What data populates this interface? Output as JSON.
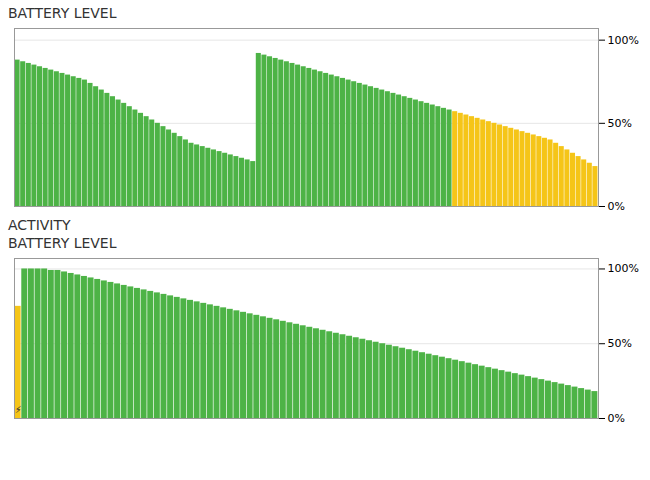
{
  "chart_data": [
    {
      "type": "bar",
      "title": "BATTERY LEVEL",
      "categories": [
        null,
        null,
        null,
        null,
        null,
        null,
        null,
        null,
        null,
        null,
        null,
        null,
        null,
        null,
        null,
        null,
        null,
        null,
        null,
        null,
        null,
        null,
        null,
        null,
        null,
        null,
        null,
        null,
        null,
        null,
        null,
        null,
        null,
        null,
        null,
        null,
        null,
        null,
        null,
        null,
        null,
        null,
        null,
        null,
        null,
        null,
        null,
        null,
        null,
        null,
        null,
        null,
        null,
        null,
        null,
        null,
        null,
        null,
        null,
        null,
        null,
        null,
        null,
        null,
        null,
        null,
        null,
        null,
        null,
        null,
        null,
        null,
        null,
        null,
        null,
        null,
        null,
        null,
        null,
        null,
        null,
        null,
        null,
        null,
        null,
        null,
        null,
        null,
        null,
        null,
        null,
        null,
        null,
        null,
        null,
        null,
        null,
        null,
        null,
        null,
        null,
        null,
        null,
        null
      ],
      "values": [
        88,
        87,
        86,
        85,
        84,
        83,
        82,
        81,
        80,
        79,
        78,
        77,
        76,
        74,
        72,
        70,
        68,
        66,
        64,
        62,
        60,
        58,
        56,
        54,
        52,
        50,
        48,
        46,
        44,
        42,
        40,
        38,
        37,
        36,
        35,
        34,
        33,
        32,
        31,
        30,
        29,
        28,
        27,
        92,
        91,
        90,
        89,
        88,
        87,
        86,
        85,
        84,
        83,
        82,
        81,
        80,
        79,
        78,
        77,
        76,
        75,
        74,
        73,
        72,
        71,
        70,
        69,
        68,
        67,
        66,
        65,
        64,
        63,
        62,
        61,
        60,
        59,
        58,
        57,
        56,
        55,
        54,
        53,
        52,
        51,
        50,
        49,
        48,
        47,
        46,
        45,
        44,
        43,
        42,
        41,
        40,
        38,
        36,
        34,
        32,
        30,
        28,
        26,
        24
      ],
      "colors": [
        "#4db346",
        "#4db346",
        "#4db346",
        "#4db346",
        "#4db346",
        "#4db346",
        "#4db346",
        "#4db346",
        "#4db346",
        "#4db346",
        "#4db346",
        "#4db346",
        "#4db346",
        "#4db346",
        "#4db346",
        "#4db346",
        "#4db346",
        "#4db346",
        "#4db346",
        "#4db346",
        "#4db346",
        "#4db346",
        "#4db346",
        "#4db346",
        "#4db346",
        "#4db346",
        "#4db346",
        "#4db346",
        "#4db346",
        "#4db346",
        "#4db346",
        "#4db346",
        "#4db346",
        "#4db346",
        "#4db346",
        "#4db346",
        "#4db346",
        "#4db346",
        "#4db346",
        "#4db346",
        "#4db346",
        "#4db346",
        "#4db346",
        "#4db346",
        "#4db346",
        "#4db346",
        "#4db346",
        "#4db346",
        "#4db346",
        "#4db346",
        "#4db346",
        "#4db346",
        "#4db346",
        "#4db346",
        "#4db346",
        "#4db346",
        "#4db346",
        "#4db346",
        "#4db346",
        "#4db346",
        "#4db346",
        "#4db346",
        "#4db346",
        "#4db346",
        "#4db346",
        "#4db346",
        "#4db346",
        "#4db346",
        "#4db346",
        "#4db346",
        "#4db346",
        "#4db346",
        "#4db346",
        "#4db346",
        "#4db346",
        "#4db346",
        "#4db346",
        "#4db346",
        "#f5c518",
        "#f5c518",
        "#f5c518",
        "#f5c518",
        "#f5c518",
        "#f5c518",
        "#f5c518",
        "#f5c518",
        "#f5c518",
        "#f5c518",
        "#f5c518",
        "#f5c518",
        "#f5c518",
        "#f5c518",
        "#f5c518",
        "#f5c518",
        "#f5c518",
        "#f5c518",
        "#f5c518",
        "#f5c518",
        "#f5c518",
        "#f5c518",
        "#f5c518",
        "#f5c518",
        "#f5c518",
        "#f5c518"
      ],
      "ylim": [
        0,
        107
      ],
      "yticks": [
        {
          "value": 0,
          "label": "0%"
        },
        {
          "value": 50,
          "label": "50%"
        },
        {
          "value": 100,
          "label": "100%"
        }
      ],
      "grid": true,
      "tick_labels": "y"
    },
    {
      "type": "bar",
      "title": "ACTIVITY",
      "subtitle": "BATTERY LEVEL",
      "categories": [
        null,
        null,
        null,
        null,
        null,
        null,
        null,
        null,
        null,
        null,
        null,
        null,
        null,
        null,
        null,
        null,
        null,
        null,
        null,
        null,
        null,
        null,
        null,
        null,
        null,
        null,
        null,
        null,
        null,
        null,
        null,
        null,
        null,
        null,
        null,
        null,
        null,
        null,
        null,
        null,
        null,
        null,
        null,
        null,
        null,
        null,
        null,
        null,
        null,
        null,
        null,
        null,
        null,
        null,
        null,
        null,
        null,
        null,
        null,
        null,
        null,
        null,
        null,
        null,
        null,
        null,
        null,
        null,
        null,
        null,
        null,
        null,
        null,
        null,
        null,
        null,
        null,
        null,
        null,
        null,
        null,
        null,
        null,
        null,
        null,
        null,
        null,
        null
      ],
      "values": [
        75,
        100,
        100,
        100,
        100,
        99,
        99,
        98,
        97,
        96,
        95,
        94,
        93,
        92,
        91,
        90,
        89,
        88,
        87,
        86,
        85,
        84,
        83,
        82,
        81,
        80,
        79,
        78,
        77,
        76,
        75,
        74,
        73,
        72,
        71,
        70,
        69,
        68,
        67,
        66,
        65,
        64,
        63,
        62,
        61,
        60,
        59,
        58,
        57,
        56,
        55,
        54,
        53,
        52,
        51,
        50,
        49,
        48,
        47,
        46,
        45,
        44,
        43,
        42,
        41,
        40,
        39,
        38,
        37,
        36,
        35,
        34,
        33,
        32,
        31,
        30,
        29,
        28,
        27,
        26,
        25,
        24,
        23,
        22,
        21,
        20,
        19,
        18
      ],
      "colors": [
        "#f5c518",
        "#4db346",
        "#4db346",
        "#4db346",
        "#4db346",
        "#4db346",
        "#4db346",
        "#4db346",
        "#4db346",
        "#4db346",
        "#4db346",
        "#4db346",
        "#4db346",
        "#4db346",
        "#4db346",
        "#4db346",
        "#4db346",
        "#4db346",
        "#4db346",
        "#4db346",
        "#4db346",
        "#4db346",
        "#4db346",
        "#4db346",
        "#4db346",
        "#4db346",
        "#4db346",
        "#4db346",
        "#4db346",
        "#4db346",
        "#4db346",
        "#4db346",
        "#4db346",
        "#4db346",
        "#4db346",
        "#4db346",
        "#4db346",
        "#4db346",
        "#4db346",
        "#4db346",
        "#4db346",
        "#4db346",
        "#4db346",
        "#4db346",
        "#4db346",
        "#4db346",
        "#4db346",
        "#4db346",
        "#4db346",
        "#4db346",
        "#4db346",
        "#4db346",
        "#4db346",
        "#4db346",
        "#4db346",
        "#4db346",
        "#4db346",
        "#4db346",
        "#4db346",
        "#4db346",
        "#4db346",
        "#4db346",
        "#4db346",
        "#4db346",
        "#4db346",
        "#4db346",
        "#4db346",
        "#4db346",
        "#4db346",
        "#4db346",
        "#4db346",
        "#4db346",
        "#4db346",
        "#4db346",
        "#4db346",
        "#4db346",
        "#4db346",
        "#4db346",
        "#4db346",
        "#4db346",
        "#4db346",
        "#4db346",
        "#4db346",
        "#4db346",
        "#4db346",
        "#4db346",
        "#4db346",
        "#4db346"
      ],
      "ylim": [
        0,
        107
      ],
      "yticks": [
        {
          "value": 0,
          "label": "0%"
        },
        {
          "value": 50,
          "label": "50%"
        },
        {
          "value": 100,
          "label": "100%"
        }
      ],
      "grid": true,
      "tick_labels": "y",
      "annotations": [
        {
          "text": "⚡",
          "x": 0,
          "y": 4
        }
      ]
    }
  ]
}
